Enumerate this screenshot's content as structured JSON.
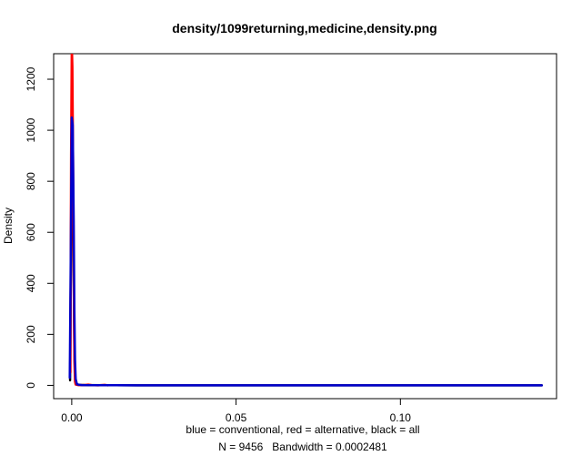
{
  "chart_data": {
    "type": "line",
    "title": "density/1099returning,medicine,density.png",
    "xlabel": "blue = conventional, red = alternative, black = all",
    "sublabel": "N = 9456   Bandwidth = 0.0002481",
    "ylabel": "Density",
    "xlim": [
      -0.0055,
      0.1475
    ],
    "ylim": [
      -52,
      1300
    ],
    "x_ticks": [
      0.0,
      0.05,
      0.1
    ],
    "x_tick_labels": [
      "0.00",
      "0.05",
      "0.10"
    ],
    "y_ticks": [
      0,
      200,
      400,
      600,
      800,
      1000,
      1200
    ],
    "y_tick_labels": [
      "0",
      "200",
      "400",
      "600",
      "800",
      "1000",
      "1200"
    ],
    "grid": false,
    "series": [
      {
        "name": "all",
        "color": "#000000",
        "x": [
          -0.0005,
          -0.0002,
          0.0,
          0.0002,
          0.0004,
          0.0006,
          0.0008,
          0.001,
          0.0013,
          0.002,
          0.005,
          0.01,
          0.02,
          0.05,
          0.1,
          0.143
        ],
        "y": [
          20,
          600,
          1100,
          1000,
          700,
          400,
          150,
          40,
          8,
          2,
          1,
          0.5,
          0.3,
          0,
          0,
          0
        ]
      },
      {
        "name": "alternative",
        "color": "#ff0000",
        "x": [
          -0.0004,
          -0.0002,
          0.0,
          0.0001,
          0.0002,
          0.0004,
          0.0006,
          0.0008,
          0.001,
          0.0012,
          0.002,
          0.004,
          0.005,
          0.006,
          0.008,
          0.01,
          0.011
        ],
        "y": [
          50,
          900,
          1300,
          1300,
          1250,
          900,
          450,
          100,
          15,
          3,
          1,
          1,
          3,
          1,
          0,
          2,
          0
        ]
      },
      {
        "name": "conventional",
        "color": "#0000cc",
        "x": [
          -0.0006,
          -0.0003,
          0.0,
          0.0003,
          0.0006,
          0.0008,
          0.001,
          0.0012,
          0.0016,
          0.003,
          0.01,
          0.02,
          0.05,
          0.1,
          0.143
        ],
        "y": [
          30,
          500,
          1050,
          1020,
          650,
          300,
          100,
          25,
          4,
          1,
          0.5,
          0.3,
          0,
          0,
          0
        ]
      }
    ]
  }
}
